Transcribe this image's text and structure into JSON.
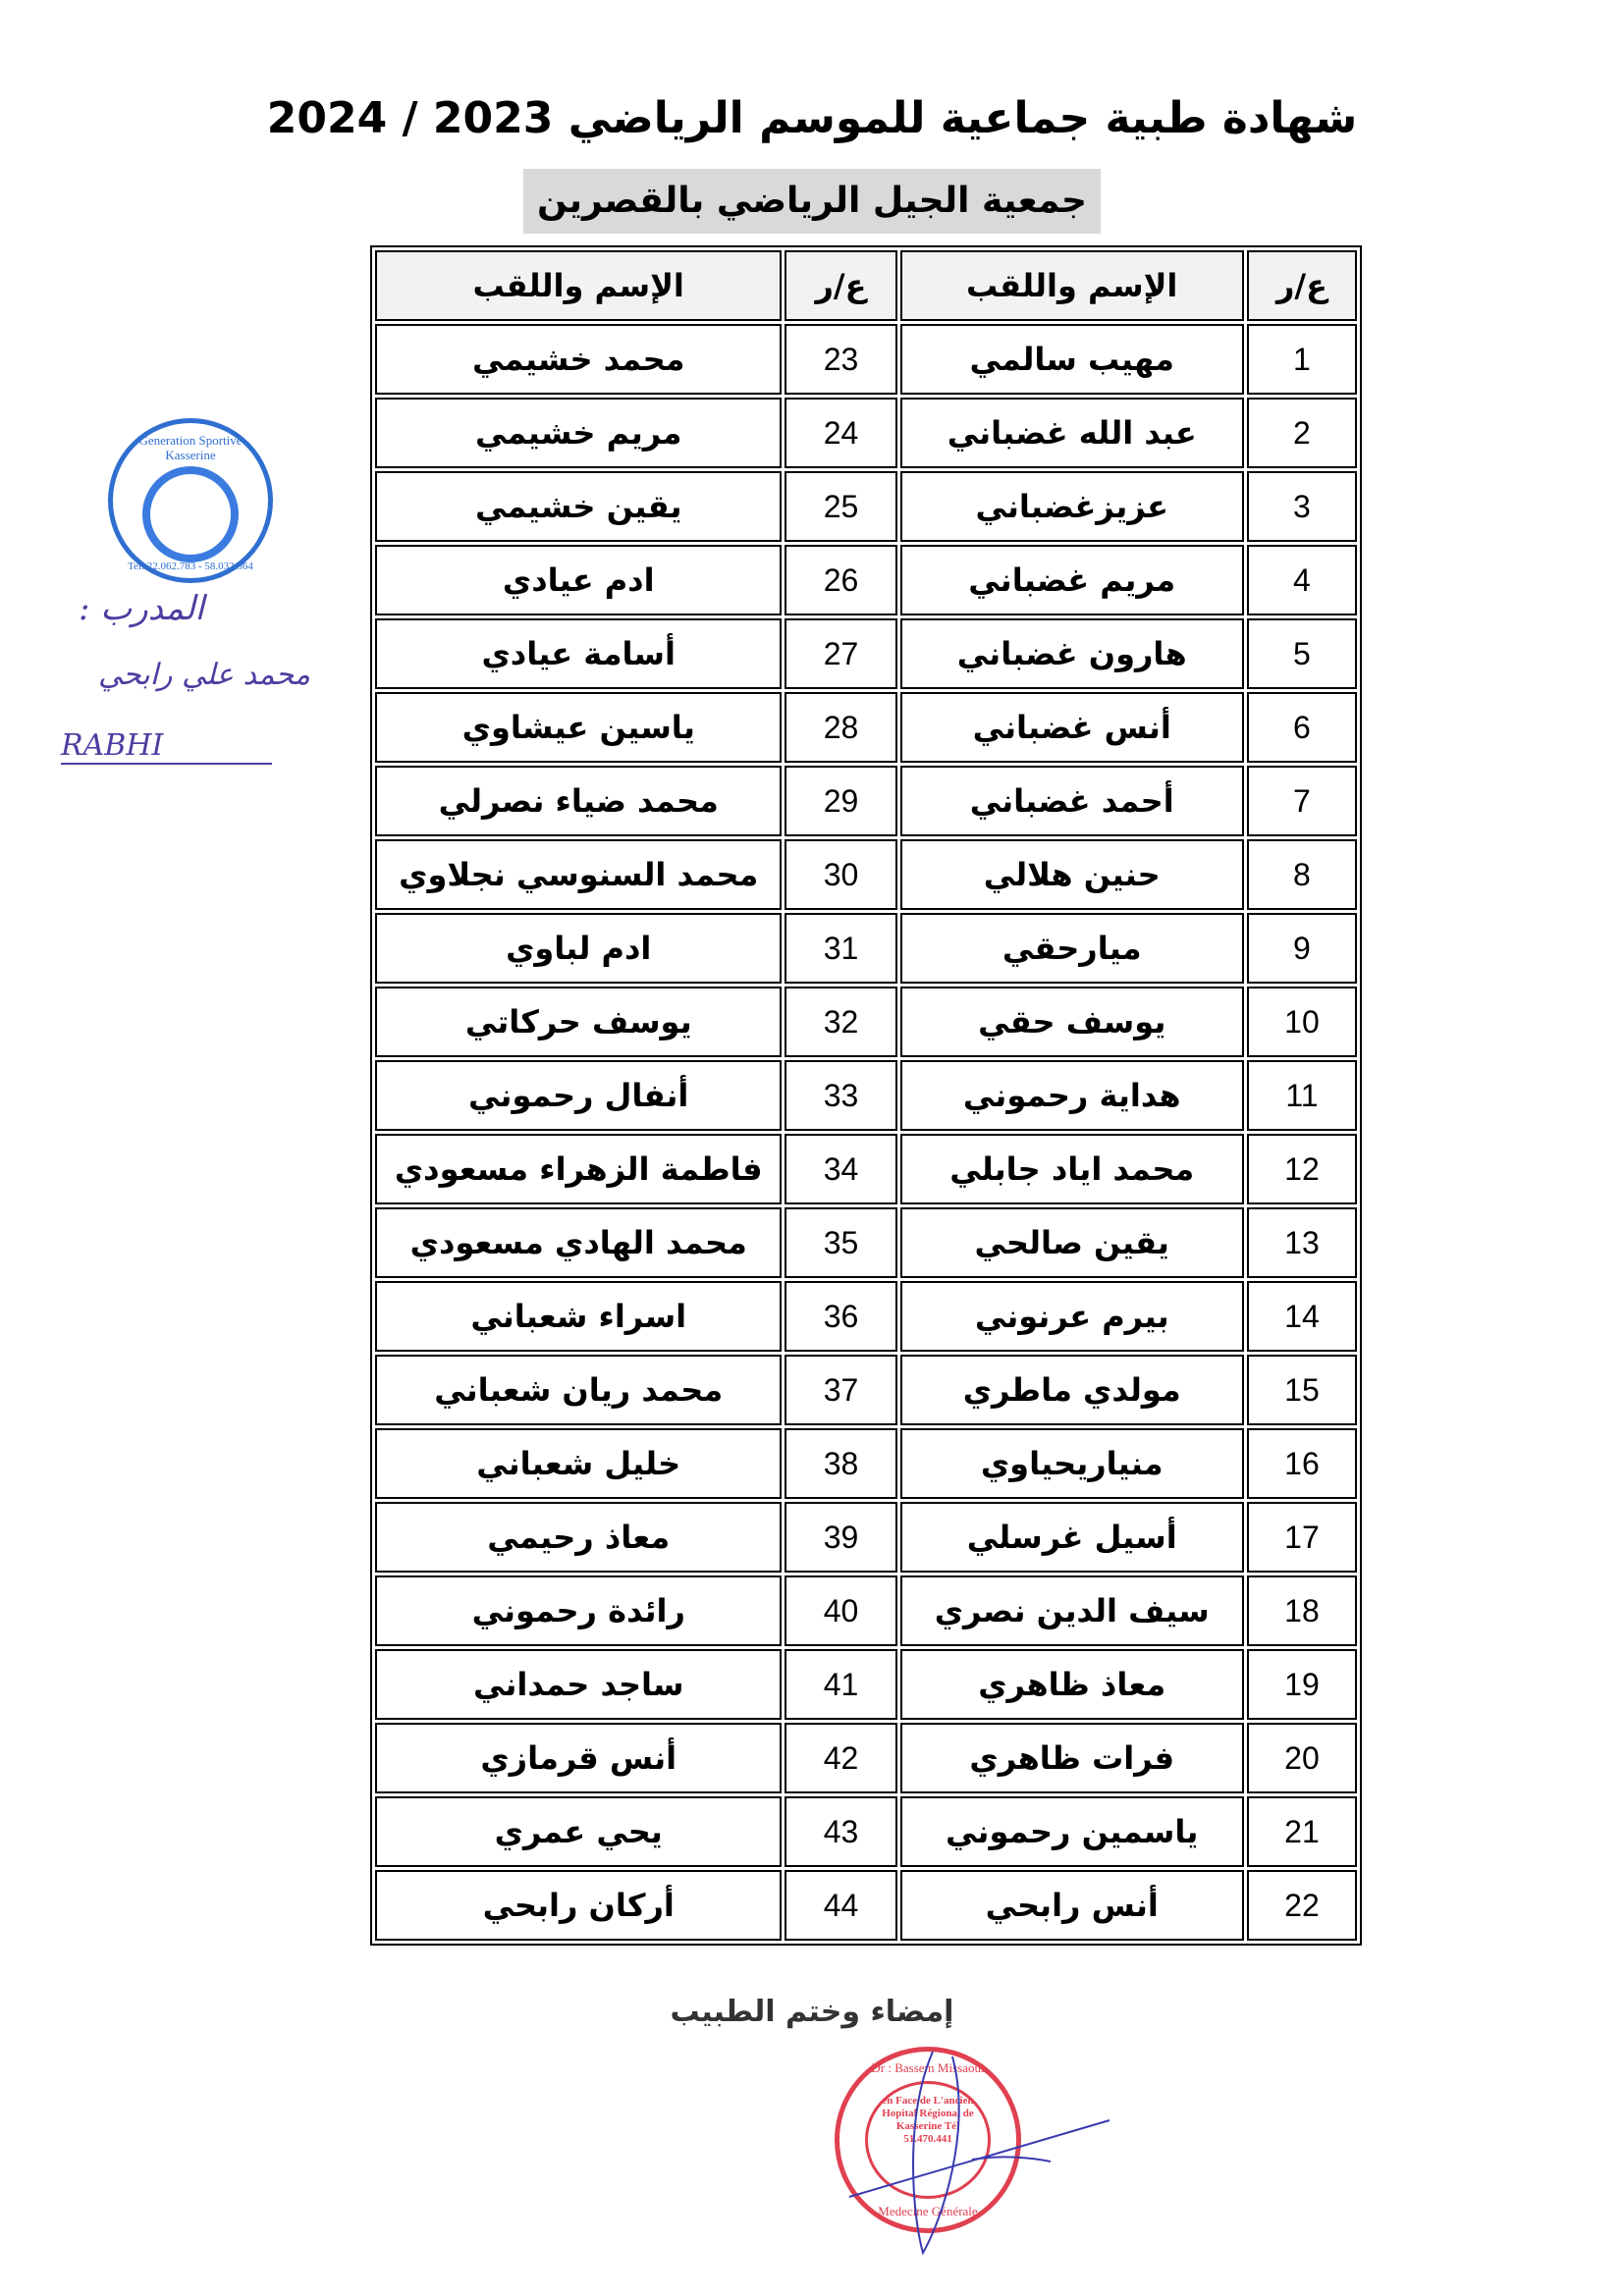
{
  "title": "شهادة طبية جماعية للموسم الرياضي 2023 / 2024",
  "club": "جمعية الجيل الرياضي بالقصرين",
  "table": {
    "headers": {
      "num": "ع/ر",
      "name": "الإسم واللقب"
    },
    "rows": [
      {
        "n1": "1",
        "name1": "مهيب سالمي",
        "n2": "23",
        "name2": "محمد خشيمي"
      },
      {
        "n1": "2",
        "name1": "عبد الله غضباني",
        "n2": "24",
        "name2": "مريم خشيمي"
      },
      {
        "n1": "3",
        "name1": "عزيزغضباني",
        "n2": "25",
        "name2": "يقين خشيمي"
      },
      {
        "n1": "4",
        "name1": "مريم غضباني",
        "n2": "26",
        "name2": "ادم عيادي"
      },
      {
        "n1": "5",
        "name1": "هارون غضباني",
        "n2": "27",
        "name2": "أسامة عيادي"
      },
      {
        "n1": "6",
        "name1": "أنس غضباني",
        "n2": "28",
        "name2": "ياسين عيشاوي"
      },
      {
        "n1": "7",
        "name1": "أحمد غضباني",
        "n2": "29",
        "name2": "محمد ضياء نصرلي"
      },
      {
        "n1": "8",
        "name1": "حنين هلالي",
        "n2": "30",
        "name2": "محمد السنوسي نجلاوي"
      },
      {
        "n1": "9",
        "name1": "ميارحقي",
        "n2": "31",
        "name2": "ادم لباوي"
      },
      {
        "n1": "10",
        "name1": "يوسف حقي",
        "n2": "32",
        "name2": "يوسف حركاتي"
      },
      {
        "n1": "11",
        "name1": "هداية رحموني",
        "n2": "33",
        "name2": "أنفال رحموني"
      },
      {
        "n1": "12",
        "name1": "محمد اياد جابلي",
        "n2": "34",
        "name2": "فاطمة الزهراء مسعودي"
      },
      {
        "n1": "13",
        "name1": "يقين صالحي",
        "n2": "35",
        "name2": "محمد الهادي مسعودي"
      },
      {
        "n1": "14",
        "name1": "بيرم عرنوني",
        "n2": "36",
        "name2": "اسراء شعباني"
      },
      {
        "n1": "15",
        "name1": "مولدي ماطري",
        "n2": "37",
        "name2": "محمد ريان شعباني"
      },
      {
        "n1": "16",
        "name1": "منياريحياوي",
        "n2": "38",
        "name2": "خليل شعباني"
      },
      {
        "n1": "17",
        "name1": "أسيل غرسلي",
        "n2": "39",
        "name2": "معاذ رحيمي"
      },
      {
        "n1": "18",
        "name1": "سيف الدين نصري",
        "n2": "40",
        "name2": "رائدة رحموني"
      },
      {
        "n1": "19",
        "name1": "معاذ ظاهري",
        "n2": "41",
        "name2": "ساجد حمداني"
      },
      {
        "n1": "20",
        "name1": "فرات ظاهري",
        "n2": "42",
        "name2": "أنس قرمازي"
      },
      {
        "n1": "21",
        "name1": "ياسمين رحموني",
        "n2": "43",
        "name2": "يحي عمري"
      },
      {
        "n1": "22",
        "name1": "أنس رابحي",
        "n2": "44",
        "name2": "أركان رابحي"
      }
    ]
  },
  "club_stamp": {
    "top": "Generation Sportive Kasserine",
    "bottom": "Tel: 22.062.783 - 58.032.564",
    "color": "#2f6fd0"
  },
  "coach": {
    "label": "المدرب :",
    "name": "محمد علي رابحي",
    "signature": "RABHI",
    "ink": "#4a3fa0"
  },
  "doctor": {
    "label": "إمضاء وختم الطبيب",
    "stamp_name": "Dr : Bassem Missaoui",
    "stamp_center": "en Face de L'ancien Hopital Régional de Kasserine Tél 51.470.441",
    "stamp_bottom": "Medecine Générale",
    "color": "#e04050"
  }
}
